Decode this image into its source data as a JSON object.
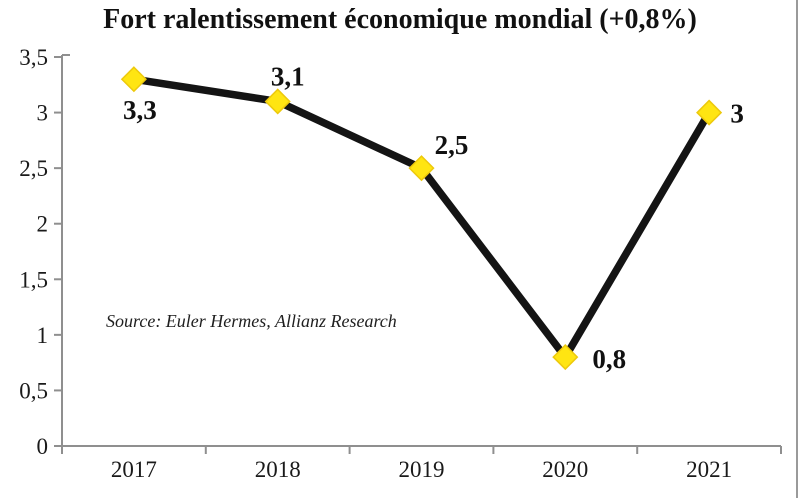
{
  "page": {
    "title": "Fort ralentissement économique mondial (+0,8%)",
    "source_note": "Source: Euler Hermes, Allianz Research"
  },
  "chart_data": {
    "type": "line",
    "title": "Fort ralentissement économique mondial (+0,8%)",
    "categories": [
      "2017",
      "2018",
      "2019",
      "2020",
      "2021"
    ],
    "values": [
      3.3,
      3.1,
      2.5,
      0.8,
      3
    ],
    "value_labels": [
      "3,3",
      "3,1",
      "2,5",
      "0,8",
      "3"
    ],
    "xlabel": "",
    "ylabel": "",
    "ylim": [
      0,
      3.5
    ],
    "ytick_values": [
      0,
      0.5,
      1,
      1.5,
      2,
      2.5,
      3,
      3.5
    ],
    "ytick_labels": [
      "0",
      "0,5",
      "1",
      "1,5",
      "2",
      "2,5",
      "3",
      "3,5"
    ],
    "grid": false,
    "legend": "none",
    "source": "Source: Euler Hermes, Allianz Research",
    "colors": {
      "line": "#141414",
      "marker": "#ffe512",
      "marker_edge": "#edc90c",
      "axis": "#8f8f8f",
      "text": "#1a1a1a"
    }
  }
}
